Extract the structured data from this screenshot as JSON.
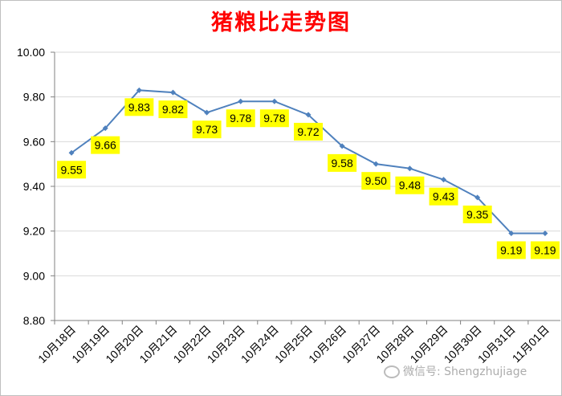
{
  "chart_data": {
    "type": "line",
    "title": "猪粮比走势图",
    "categories": [
      "10月18日",
      "10月19日",
      "10月20日",
      "10月21日",
      "10月22日",
      "10月23日",
      "10月24日",
      "10月25日",
      "10月26日",
      "10月27日",
      "10月28日",
      "10月29日",
      "10月30日",
      "10月31日",
      "11月01日"
    ],
    "series": [
      {
        "values": [
          9.55,
          9.66,
          9.83,
          9.82,
          9.73,
          9.78,
          9.78,
          9.72,
          9.58,
          9.5,
          9.48,
          9.43,
          9.35,
          9.19,
          9.19
        ]
      }
    ],
    "data_labels": [
      "9.55",
      "9.66",
      "9.83",
      "9.82",
      "9.73",
      "9.78",
      "9.78",
      "9.72",
      "9.58",
      "9.50",
      "9.48",
      "9.43",
      "9.35",
      "9.19",
      "9.19"
    ],
    "ylim": [
      8.8,
      10.0
    ],
    "yticks": [
      "8.80",
      "9.00",
      "9.20",
      "9.40",
      "9.60",
      "9.80",
      "10.00"
    ],
    "grid": true,
    "colors": {
      "title": "#ff0000",
      "line": "#4f81bd",
      "label_bg": "#ffff00",
      "grid": "#d9d9d9"
    }
  },
  "watermark": {
    "text": "微信号: Shengzhujiage"
  }
}
